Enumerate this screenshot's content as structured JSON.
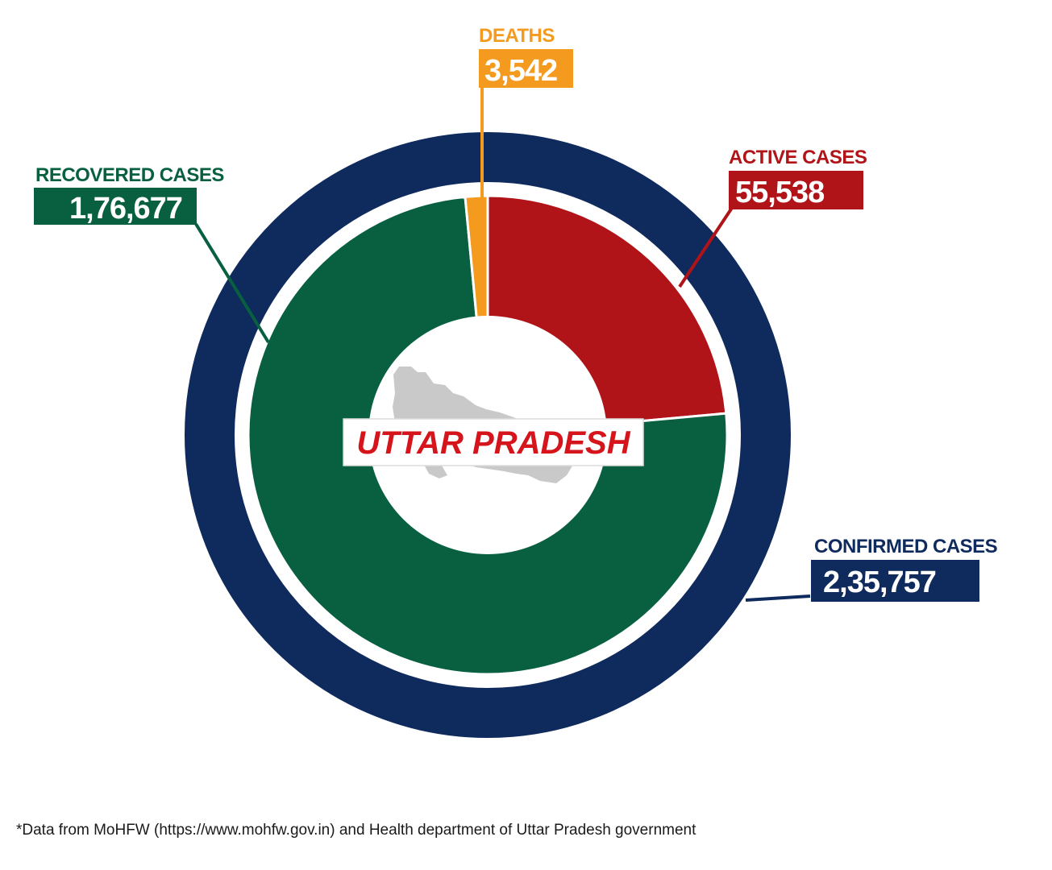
{
  "chart_data": {
    "type": "pie",
    "title": "UTTAR PRADESH",
    "outer_ring": {
      "label": "CONFIRMED CASES",
      "value": 235757,
      "value_text": "2,35,757",
      "color": "#0f2a5c"
    },
    "slices": [
      {
        "key": "active",
        "label": "ACTIVE CASES",
        "value": 55538,
        "value_text": "55,538",
        "color": "#b01419"
      },
      {
        "key": "recovered",
        "label": "RECOVERED CASES",
        "value": 176677,
        "value_text": "1,76,677",
        "color": "#086040"
      },
      {
        "key": "deaths",
        "label": "DEATHS",
        "value": 3542,
        "value_text": "3,542",
        "color": "#f39a1f"
      }
    ]
  },
  "center": {
    "title": "UTTAR PRADESH",
    "title_color": "#d6141b",
    "map_color": "#c9c9c9"
  },
  "footnote": "*Data from MoHFW (https://www.mohfw.gov.in) and Health department of Uttar Pradesh government"
}
